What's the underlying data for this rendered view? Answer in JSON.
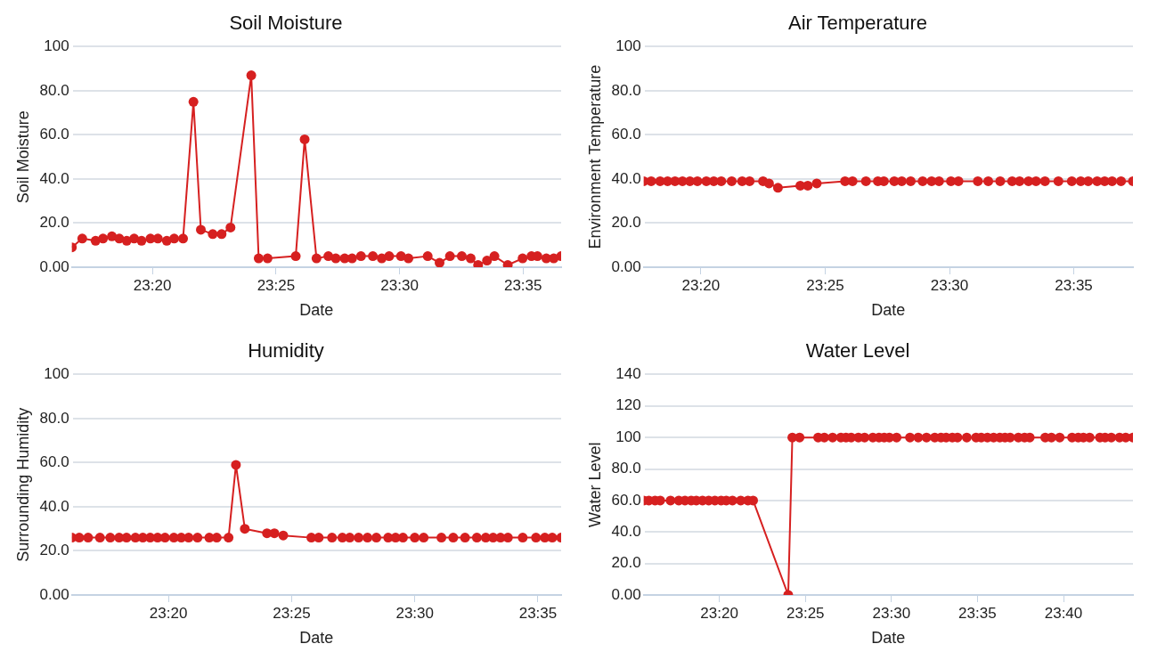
{
  "chart_data": [
    {
      "type": "line",
      "title": "Soil Moisture",
      "xlabel": "Date",
      "ylabel": "Soil Moisture",
      "grid": "y",
      "legend": false,
      "marker": "circle",
      "line_style": "solid",
      "xlim": [
        23.279,
        23.609
      ],
      "xticks": [
        {
          "value": 23.3333,
          "label": "23:20"
        },
        {
          "value": 23.4167,
          "label": "23:25"
        },
        {
          "value": 23.5,
          "label": "23:30"
        },
        {
          "value": 23.5833,
          "label": "23:35"
        }
      ],
      "ylim": [
        0,
        100
      ],
      "yticks": [
        {
          "value": 0,
          "label": "0.00"
        },
        {
          "value": 20,
          "label": "20.0"
        },
        {
          "value": 40,
          "label": "40.0"
        },
        {
          "value": 60,
          "label": "60.0"
        },
        {
          "value": 80,
          "label": "80.0"
        },
        100
      ],
      "x": [
        23.279,
        23.286,
        23.295,
        23.3,
        23.306,
        23.311,
        23.316,
        23.321,
        23.326,
        23.332,
        23.337,
        23.343,
        23.348,
        23.354,
        23.361,
        23.366,
        23.374,
        23.38,
        23.386,
        23.4,
        23.405,
        23.411,
        23.43,
        23.436,
        23.444,
        23.452,
        23.457,
        23.463,
        23.468,
        23.474,
        23.482,
        23.488,
        23.493,
        23.501,
        23.506,
        23.519,
        23.527,
        23.534,
        23.542,
        23.548,
        23.553,
        23.559,
        23.564,
        23.573,
        23.583,
        23.589,
        23.593,
        23.599,
        23.604,
        23.609
      ],
      "series": [
        {
          "color": "#d62020",
          "values": [
            9,
            13,
            12,
            13,
            14,
            13,
            12,
            13,
            12,
            13,
            13,
            12,
            13,
            13,
            75,
            17,
            15,
            15,
            18,
            87,
            4,
            4,
            5,
            58,
            4,
            5,
            4,
            4,
            4,
            5,
            5,
            4,
            5,
            5,
            4,
            5,
            2,
            5,
            5,
            4,
            1,
            3,
            5,
            1,
            4,
            5,
            5,
            4,
            4,
            5
          ]
        }
      ]
    },
    {
      "type": "line",
      "title": "Air Temperature",
      "xlabel": "Date",
      "ylabel": "Environment Temperature",
      "grid": "y",
      "legend": false,
      "marker": "circle",
      "line_style": "solid",
      "xlim": [
        23.295,
        23.623
      ],
      "xticks": [
        {
          "value": 23.3333,
          "label": "23:20"
        },
        {
          "value": 23.4167,
          "label": "23:25"
        },
        {
          "value": 23.5,
          "label": "23:30"
        },
        {
          "value": 23.5833,
          "label": "23:35"
        }
      ],
      "ylim": [
        0,
        100
      ],
      "yticks": [
        {
          "value": 0,
          "label": "0.00"
        },
        {
          "value": 20,
          "label": "20.0"
        },
        {
          "value": 40,
          "label": "40.0"
        },
        {
          "value": 60,
          "label": "60.0"
        },
        {
          "value": 80,
          "label": "80.0"
        },
        100
      ],
      "x": [
        23.295,
        23.3,
        23.306,
        23.311,
        23.316,
        23.321,
        23.326,
        23.331,
        23.337,
        23.342,
        23.347,
        23.354,
        23.361,
        23.366,
        23.375,
        23.379,
        23.385,
        23.4,
        23.405,
        23.411,
        23.43,
        23.435,
        23.444,
        23.452,
        23.456,
        23.463,
        23.468,
        23.474,
        23.482,
        23.488,
        23.493,
        23.501,
        23.506,
        23.519,
        23.526,
        23.534,
        23.542,
        23.547,
        23.553,
        23.558,
        23.564,
        23.573,
        23.582,
        23.588,
        23.593,
        23.599,
        23.604,
        23.609,
        23.615,
        23.623
      ],
      "series": [
        {
          "color": "#d62020",
          "values": [
            39,
            39,
            39,
            39,
            39,
            39,
            39,
            39,
            39,
            39,
            39,
            39,
            39,
            39,
            39,
            38,
            36,
            37,
            37,
            38,
            39,
            39,
            39,
            39,
            39,
            39,
            39,
            39,
            39,
            39,
            39,
            39,
            39,
            39,
            39,
            39,
            39,
            39,
            39,
            39,
            39,
            39,
            39,
            39,
            39,
            39,
            39,
            39,
            39,
            39
          ]
        }
      ]
    },
    {
      "type": "line",
      "title": "Humidity",
      "xlabel": "Date",
      "ylabel": "Surrounding Humidity",
      "grid": "y",
      "legend": false,
      "marker": "circle",
      "line_style": "solid",
      "xlim": [
        23.268,
        23.599
      ],
      "xticks": [
        {
          "value": 23.3333,
          "label": "23:20"
        },
        {
          "value": 23.4167,
          "label": "23:25"
        },
        {
          "value": 23.5,
          "label": "23:30"
        },
        {
          "value": 23.5833,
          "label": "23:35"
        }
      ],
      "ylim": [
        0,
        100
      ],
      "yticks": [
        {
          "value": 0,
          "label": "0.00"
        },
        {
          "value": 20,
          "label": "20.0"
        },
        {
          "value": 40,
          "label": "40.0"
        },
        {
          "value": 60,
          "label": "60.0"
        },
        {
          "value": 80,
          "label": "80.0"
        },
        100
      ],
      "x": [
        23.268,
        23.273,
        23.279,
        23.287,
        23.294,
        23.3,
        23.305,
        23.311,
        23.316,
        23.321,
        23.326,
        23.331,
        23.337,
        23.342,
        23.347,
        23.353,
        23.361,
        23.366,
        23.374,
        23.379,
        23.385,
        23.4,
        23.405,
        23.411,
        23.43,
        23.435,
        23.444,
        23.451,
        23.456,
        23.462,
        23.468,
        23.474,
        23.482,
        23.487,
        23.492,
        23.5,
        23.506,
        23.518,
        23.526,
        23.534,
        23.542,
        23.548,
        23.553,
        23.558,
        23.563,
        23.573,
        23.582,
        23.588,
        23.593,
        23.599
      ],
      "series": [
        {
          "color": "#d62020",
          "values": [
            26,
            26,
            26,
            26,
            26,
            26,
            26,
            26,
            26,
            26,
            26,
            26,
            26,
            26,
            26,
            26,
            26,
            26,
            26,
            59,
            30,
            28,
            28,
            27,
            26,
            26,
            26,
            26,
            26,
            26,
            26,
            26,
            26,
            26,
            26,
            26,
            26,
            26,
            26,
            26,
            26,
            26,
            26,
            26,
            26,
            26,
            26,
            26,
            26,
            26
          ]
        }
      ]
    },
    {
      "type": "line",
      "title": "Water Level",
      "xlabel": "Date",
      "ylabel": "Water Level",
      "grid": "y",
      "legend": false,
      "marker": "circle",
      "line_style": "solid",
      "xlim": [
        23.26,
        23.734
      ],
      "xticks": [
        {
          "value": 23.3333,
          "label": "23:20"
        },
        {
          "value": 23.4167,
          "label": "23:25"
        },
        {
          "value": 23.5,
          "label": "23:30"
        },
        {
          "value": 23.5833,
          "label": "23:35"
        },
        {
          "value": 23.6667,
          "label": "23:40"
        }
      ],
      "ylim": [
        0,
        140
      ],
      "yticks": [
        {
          "value": 0,
          "label": "0.00"
        },
        {
          "value": 20,
          "label": "20.0"
        },
        {
          "value": 40,
          "label": "40.0"
        },
        {
          "value": 60,
          "label": "60.0"
        },
        {
          "value": 80,
          "label": "80.0"
        },
        100,
        120,
        140
      ],
      "x": [
        23.26,
        23.265,
        23.271,
        23.276,
        23.286,
        23.294,
        23.3,
        23.306,
        23.311,
        23.317,
        23.323,
        23.329,
        23.335,
        23.34,
        23.346,
        23.354,
        23.361,
        23.366,
        23.4,
        23.404,
        23.411,
        23.429,
        23.435,
        23.443,
        23.451,
        23.456,
        23.461,
        23.468,
        23.474,
        23.482,
        23.488,
        23.493,
        23.498,
        23.505,
        23.518,
        23.526,
        23.534,
        23.542,
        23.548,
        23.553,
        23.559,
        23.564,
        23.573,
        23.582,
        23.587,
        23.593,
        23.599,
        23.605,
        23.61,
        23.615,
        23.623,
        23.629,
        23.634,
        23.649,
        23.655,
        23.663,
        23.675,
        23.681,
        23.686,
        23.692,
        23.702,
        23.707,
        23.713,
        23.721,
        23.727,
        23.734
      ],
      "series": [
        {
          "color": "#d62020",
          "values": [
            60,
            60,
            60,
            60,
            60,
            60,
            60,
            60,
            60,
            60,
            60,
            60,
            60,
            60,
            60,
            60,
            60,
            60,
            0,
            100,
            100,
            100,
            100,
            100,
            100,
            100,
            100,
            100,
            100,
            100,
            100,
            100,
            100,
            100,
            100,
            100,
            100,
            100,
            100,
            100,
            100,
            100,
            100,
            100,
            100,
            100,
            100,
            100,
            100,
            100,
            100,
            100,
            100,
            100,
            100,
            100,
            100,
            100,
            100,
            100,
            100,
            100,
            100,
            100,
            100,
            100
          ]
        }
      ]
    }
  ]
}
